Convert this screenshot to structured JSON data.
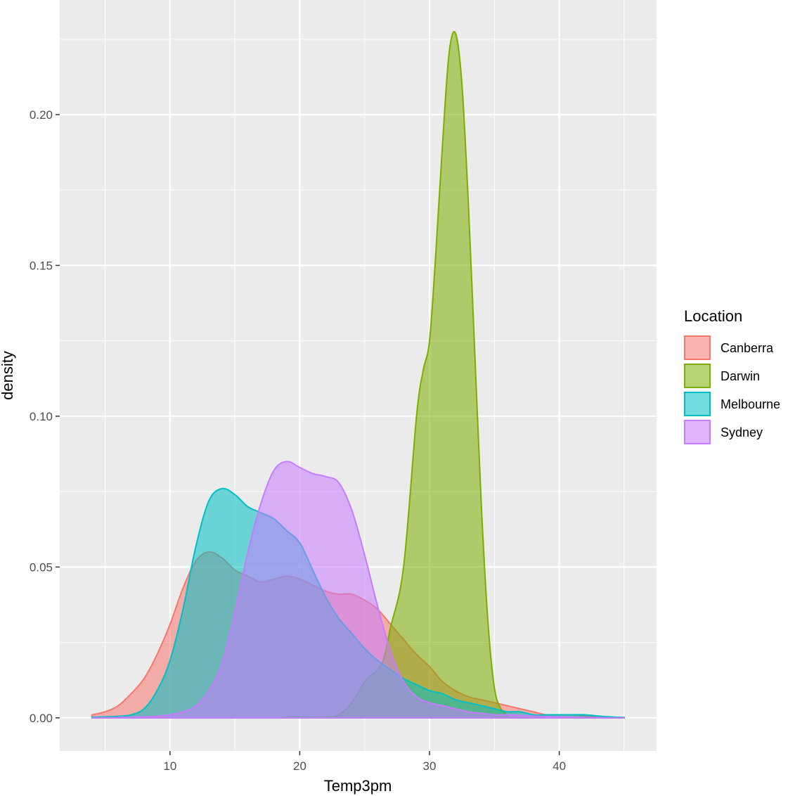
{
  "chart_data": {
    "type": "area",
    "subtype": "density",
    "xlabel": "Temp3pm",
    "ylabel": "density",
    "xlim": [
      1.5,
      47.5
    ],
    "ylim": [
      -0.011,
      0.238
    ],
    "x_ticks": [
      10,
      20,
      30,
      40
    ],
    "x_tick_labels": [
      "10",
      "20",
      "30",
      "40"
    ],
    "y_ticks": [
      0.0,
      0.05,
      0.1,
      0.15,
      0.2
    ],
    "y_tick_labels": [
      "0.00",
      "0.05",
      "0.10",
      "0.15",
      "0.20"
    ],
    "grid": true,
    "legend": {
      "title": "Location",
      "position": "right"
    },
    "series": [
      {
        "name": "Canberra",
        "color": "#F8766D",
        "x": [
          4,
          5,
          6,
          7,
          8,
          9,
          10,
          11,
          12,
          13,
          14,
          15,
          16,
          17,
          18,
          19,
          20,
          21,
          22,
          23,
          24,
          25,
          26,
          27,
          28,
          29,
          30,
          31,
          32,
          33,
          34,
          35,
          36,
          37,
          38,
          39,
          40,
          41,
          42,
          43,
          44,
          45
        ],
        "y": [
          0.001,
          0.002,
          0.004,
          0.008,
          0.013,
          0.021,
          0.031,
          0.043,
          0.052,
          0.055,
          0.053,
          0.049,
          0.047,
          0.045,
          0.046,
          0.047,
          0.046,
          0.044,
          0.042,
          0.041,
          0.041,
          0.039,
          0.036,
          0.031,
          0.026,
          0.021,
          0.017,
          0.012,
          0.009,
          0.007,
          0.006,
          0.005,
          0.004,
          0.003,
          0.002,
          0.001,
          0.001,
          0.001,
          0.0005,
          0.0003,
          0.0002,
          0.0001
        ]
      },
      {
        "name": "Darwin",
        "color": "#7CAE00",
        "x": [
          19,
          20,
          21,
          22,
          23,
          24,
          25,
          26,
          26.5,
          27,
          28,
          29,
          29.5,
          30,
          30.5,
          31,
          31.5,
          32,
          32.5,
          33,
          33.5,
          34,
          34.5,
          35,
          35.5,
          36
        ],
        "y": [
          0.0003,
          0.0003,
          0.0002,
          0.0002,
          0.001,
          0.005,
          0.012,
          0.016,
          0.02,
          0.03,
          0.05,
          0.1,
          0.115,
          0.125,
          0.155,
          0.19,
          0.22,
          0.227,
          0.21,
          0.17,
          0.12,
          0.07,
          0.032,
          0.01,
          0.003,
          0.001
        ]
      },
      {
        "name": "Melbourne",
        "color": "#00BFC4",
        "x": [
          4,
          5,
          6,
          7,
          8,
          9,
          10,
          11,
          12,
          13,
          14,
          15,
          16,
          17,
          18,
          19,
          20,
          21,
          22,
          23,
          24,
          25,
          26,
          27,
          28,
          29,
          30,
          31,
          32,
          33,
          34,
          35,
          36,
          37,
          38,
          39,
          40,
          41,
          42,
          43,
          44,
          45
        ],
        "y": [
          0.0002,
          0.0003,
          0.0005,
          0.001,
          0.003,
          0.009,
          0.019,
          0.036,
          0.057,
          0.072,
          0.076,
          0.074,
          0.07,
          0.068,
          0.066,
          0.062,
          0.058,
          0.049,
          0.04,
          0.033,
          0.028,
          0.023,
          0.019,
          0.016,
          0.013,
          0.011,
          0.009,
          0.008,
          0.006,
          0.005,
          0.004,
          0.003,
          0.002,
          0.002,
          0.001,
          0.001,
          0.001,
          0.001,
          0.001,
          0.0006,
          0.0003,
          0.0001
        ]
      },
      {
        "name": "Sydney",
        "color": "#C77CFF",
        "x": [
          4,
          5,
          6,
          7,
          8,
          9,
          10,
          11,
          12,
          13,
          14,
          15,
          16,
          17,
          18,
          19,
          20,
          21,
          22,
          23,
          24,
          25,
          26,
          27,
          28,
          29,
          30,
          31,
          32,
          33,
          34,
          35,
          36,
          37,
          38,
          39,
          40,
          41,
          42,
          43,
          44,
          45
        ],
        "y": [
          0.0,
          0.0,
          0.0001,
          0.0002,
          0.0003,
          0.0005,
          0.001,
          0.002,
          0.004,
          0.009,
          0.018,
          0.035,
          0.055,
          0.071,
          0.082,
          0.085,
          0.083,
          0.081,
          0.08,
          0.078,
          0.069,
          0.054,
          0.037,
          0.022,
          0.012,
          0.007,
          0.005,
          0.004,
          0.003,
          0.002,
          0.0015,
          0.001,
          0.001,
          0.0008,
          0.0006,
          0.0004,
          0.0003,
          0.0002,
          0.0001,
          0.0001,
          0.0,
          0.0
        ]
      }
    ]
  }
}
